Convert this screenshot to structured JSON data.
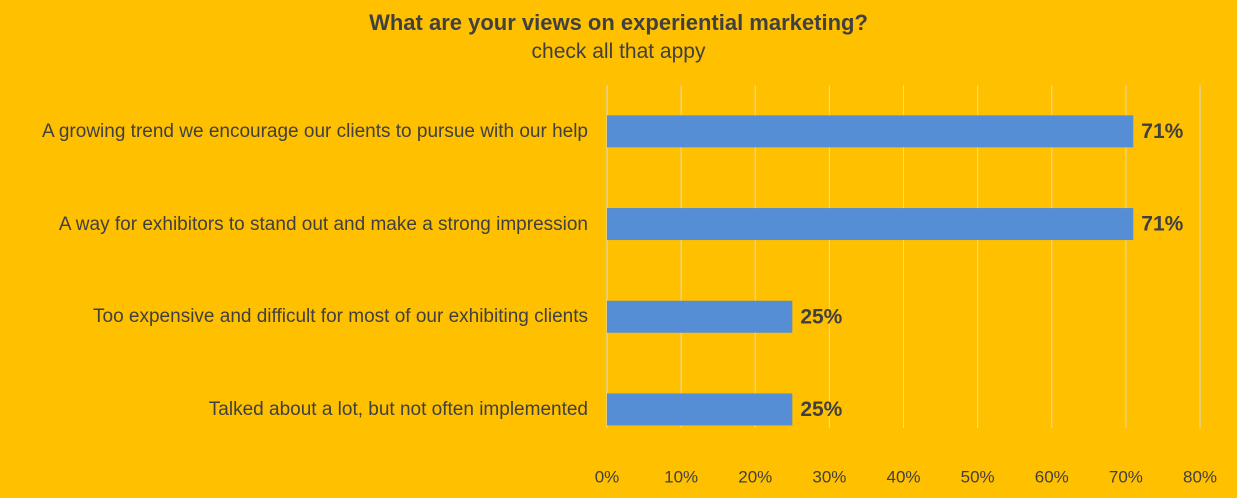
{
  "chart_data": {
    "type": "bar",
    "orientation": "horizontal",
    "title": "What are your views on experiential marketing?",
    "subtitle": "check all that appy",
    "categories": [
      "A growing trend we encourage our clients to pursue with our help",
      "A way for exhibitors to stand out and make a strong impression",
      "Too expensive and difficult for most of our exhibiting clients",
      "Talked about a lot, but not often implemented"
    ],
    "values": [
      71,
      71,
      25,
      25
    ],
    "value_labels": [
      "71%",
      "71%",
      "25%",
      "25%"
    ],
    "color": "#558ED5",
    "xlim": [
      0,
      80
    ],
    "xticks": [
      {
        "value": 0,
        "label": "0%"
      },
      {
        "value": 10,
        "label": "10%"
      },
      {
        "value": 20,
        "label": "20%"
      },
      {
        "value": 30,
        "label": "30%"
      },
      {
        "value": 40,
        "label": "40%"
      },
      {
        "value": 50,
        "label": "50%"
      },
      {
        "value": 60,
        "label": "60%"
      },
      {
        "value": 70,
        "label": "70%"
      },
      {
        "value": 80,
        "label": "80%"
      }
    ],
    "grid": true
  }
}
